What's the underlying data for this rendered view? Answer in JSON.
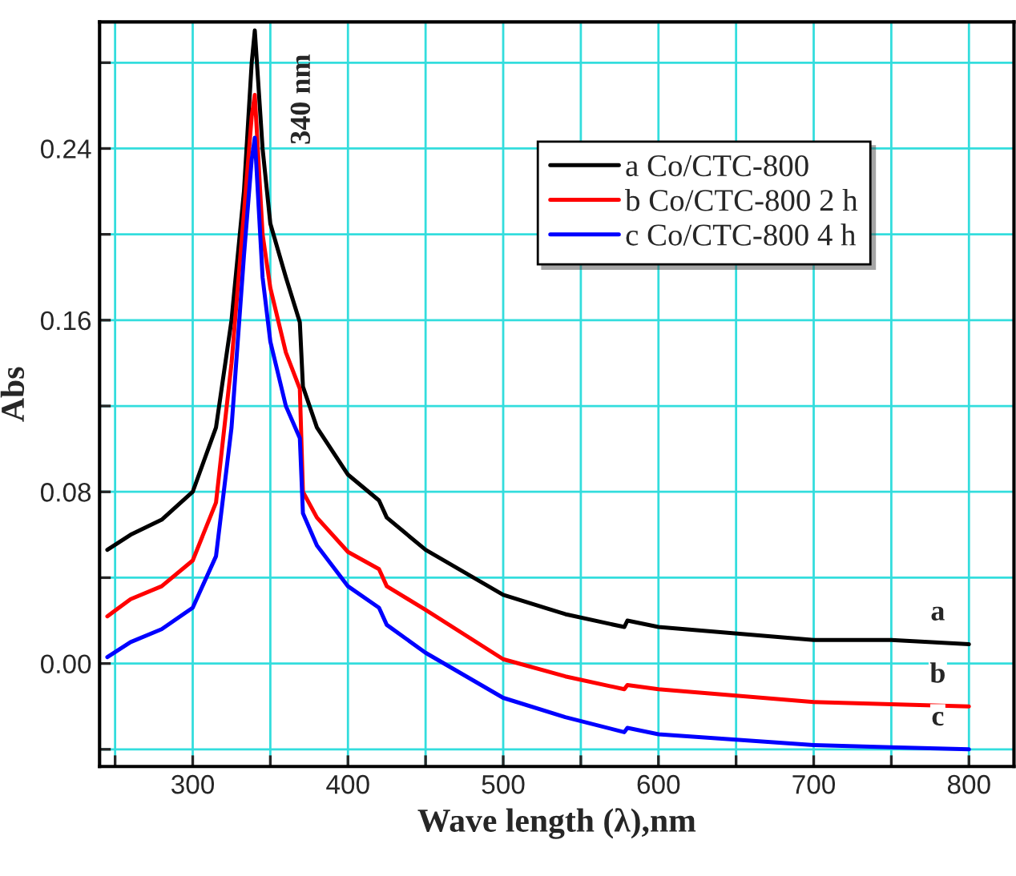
{
  "chart_data": {
    "type": "line",
    "xlabel": "Wave length (λ),nm",
    "ylabel": "Abs",
    "xlim": [
      240,
      829
    ],
    "ylim": [
      -0.048,
      0.299
    ],
    "xticks": [
      {
        "value": 250,
        "label": null
      },
      300,
      {
        "value": 350,
        "label": null
      },
      400,
      {
        "value": 450,
        "label": null
      },
      500,
      {
        "value": 550,
        "label": null
      },
      600,
      {
        "value": 650,
        "label": null
      },
      700,
      {
        "value": 750,
        "label": null
      },
      800
    ],
    "yticks": [
      {
        "value": -0.04,
        "label": null
      },
      {
        "value": 0.0,
        "label": "0.00"
      },
      {
        "value": 0.04,
        "label": null
      },
      0.08,
      {
        "value": 0.12,
        "label": null
      },
      0.16,
      {
        "value": 0.2,
        "label": null
      },
      0.24,
      {
        "value": 0.28,
        "label": null
      }
    ],
    "grid": true,
    "legend": "top right",
    "marker": "none",
    "line_style": "solid",
    "x": [
      245,
      260,
      280,
      300,
      315,
      325,
      333,
      338,
      340,
      345,
      350,
      360,
      369,
      371,
      380,
      400,
      420,
      425,
      450,
      500,
      540,
      578,
      580,
      600,
      700,
      750,
      800
    ],
    "series": [
      {
        "name": "a Co/CTC-800",
        "color": "#000000",
        "values": [
          0.053,
          0.06,
          0.067,
          0.08,
          0.11,
          0.16,
          0.22,
          0.28,
          0.295,
          0.24,
          0.205,
          0.18,
          0.159,
          0.129,
          0.11,
          0.088,
          0.076,
          0.068,
          0.053,
          0.032,
          0.023,
          0.017,
          0.02,
          0.017,
          0.011,
          0.011,
          0.009
        ]
      },
      {
        "name": "b Co/CTC-800 2 h",
        "color": "#ff0000",
        "values": [
          0.022,
          0.03,
          0.036,
          0.048,
          0.075,
          0.14,
          0.21,
          0.255,
          0.265,
          0.2,
          0.175,
          0.145,
          0.128,
          0.08,
          0.068,
          0.052,
          0.044,
          0.036,
          0.025,
          0.002,
          -0.006,
          -0.012,
          -0.01,
          -0.012,
          -0.018,
          -0.019,
          -0.02
        ]
      },
      {
        "name": "c Co/CTC-800 4 h",
        "color": "#0000ff",
        "values": [
          0.003,
          0.01,
          0.016,
          0.026,
          0.05,
          0.11,
          0.19,
          0.235,
          0.245,
          0.18,
          0.15,
          0.12,
          0.105,
          0.07,
          0.055,
          0.036,
          0.026,
          0.018,
          0.005,
          -0.016,
          -0.025,
          -0.032,
          -0.03,
          -0.033,
          -0.038,
          -0.039,
          -0.04
        ]
      }
    ],
    "annotations": [
      "340 nm",
      "a",
      "b",
      "c"
    ]
  }
}
